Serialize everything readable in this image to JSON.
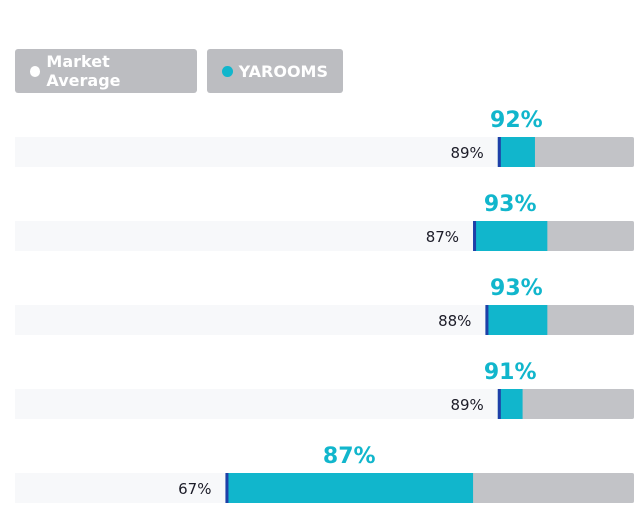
{
  "legend": {
    "market_label": "Market Average",
    "yarooms_label": "YAROOMS"
  },
  "colors": {
    "track": "#f7f8fa",
    "gray_fill": "#c2c3c7",
    "accent": "#11b6cc",
    "marker": "#1f3fa8",
    "market_dot": "#ffffff",
    "label_text": "#1c1c28"
  },
  "chart_data": {
    "type": "bar",
    "xlim": [
      0,
      100
    ],
    "series": [
      {
        "name": "Market Average",
        "values": [
          89,
          87,
          88,
          89,
          67
        ]
      },
      {
        "name": "YAROOMS",
        "values": [
          92,
          93,
          93,
          91,
          87
        ]
      }
    ],
    "market_labels": [
      "89%",
      "87%",
      "88%",
      "89%",
      "67%"
    ],
    "yarooms_labels": [
      "92%",
      "93%",
      "93%",
      "91%",
      "87%"
    ]
  }
}
